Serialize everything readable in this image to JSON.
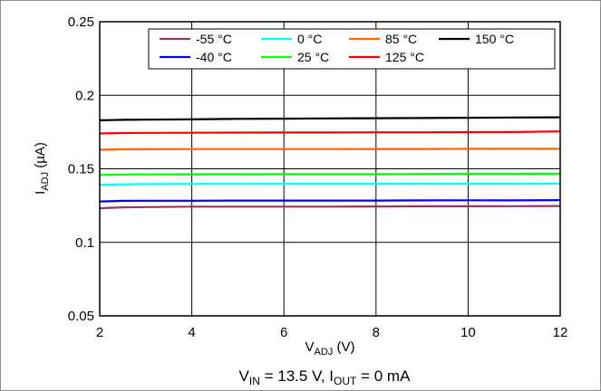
{
  "chart_data": {
    "type": "line",
    "x_axis": {
      "label_main": "V",
      "label_sub": "ADJ",
      "label_unit": " (V)",
      "ticks": [
        "2",
        "4",
        "6",
        "8",
        "10",
        "12"
      ],
      "range": [
        2,
        12
      ]
    },
    "y_axis": {
      "label_main": "I",
      "label_sub": "ADJ",
      "label_unit": " (µA)",
      "ticks": [
        "0.05",
        "0.1",
        "0.15",
        "0.2",
        "0.25"
      ],
      "range": [
        0.05,
        0.25
      ]
    },
    "grid": true,
    "legend_position": "top-right",
    "caption": {
      "p1": "V",
      "p1_sub": "IN",
      "p2": " = 13.5 V, I",
      "p2_sub": "OUT",
      "p3": " = 0 mA"
    },
    "x": [
      2,
      2.5,
      3,
      4,
      5,
      6,
      7,
      8,
      9,
      10,
      11,
      12
    ],
    "series": [
      {
        "name": "-55 °C",
        "color": "#993366",
        "values": [
          0.1232,
          0.1238,
          0.124,
          0.1243,
          0.1243,
          0.1243,
          0.1243,
          0.1244,
          0.1245,
          0.1245,
          0.1246,
          0.1247
        ]
      },
      {
        "name": "-40 °C",
        "color": "#0000ff",
        "values": [
          0.1278,
          0.1282,
          0.1283,
          0.1283,
          0.1284,
          0.1284,
          0.1284,
          0.1284,
          0.1285,
          0.1286,
          0.1285,
          0.1287
        ]
      },
      {
        "name": "0 °C",
        "color": "#00ffff",
        "values": [
          0.1392,
          0.1395,
          0.1396,
          0.1397,
          0.1397,
          0.1398,
          0.1398,
          0.1398,
          0.1398,
          0.1398,
          0.1398,
          0.1399
        ]
      },
      {
        "name": "25 °C",
        "color": "#00ff00",
        "values": [
          0.1458,
          0.1461,
          0.1462,
          0.1463,
          0.1463,
          0.1464,
          0.1464,
          0.1464,
          0.1465,
          0.1466,
          0.1466,
          0.1467
        ]
      },
      {
        "name": "85 °C",
        "color": "#ff6600",
        "values": [
          0.163,
          0.1632,
          0.1633,
          0.1634,
          0.1634,
          0.1634,
          0.1634,
          0.1635,
          0.1635,
          0.1636,
          0.1636,
          0.1636
        ]
      },
      {
        "name": "125 °C",
        "color": "#ff0000",
        "values": [
          0.174,
          0.1743,
          0.1744,
          0.1745,
          0.1746,
          0.1747,
          0.1747,
          0.1748,
          0.1748,
          0.1749,
          0.175,
          0.1754
        ]
      },
      {
        "name": "150 °C",
        "color": "#000000",
        "values": [
          0.183,
          0.1833,
          0.1834,
          0.1836,
          0.184,
          0.1841,
          0.1843,
          0.1844,
          0.1845,
          0.1847,
          0.1849,
          0.185
        ]
      }
    ]
  }
}
